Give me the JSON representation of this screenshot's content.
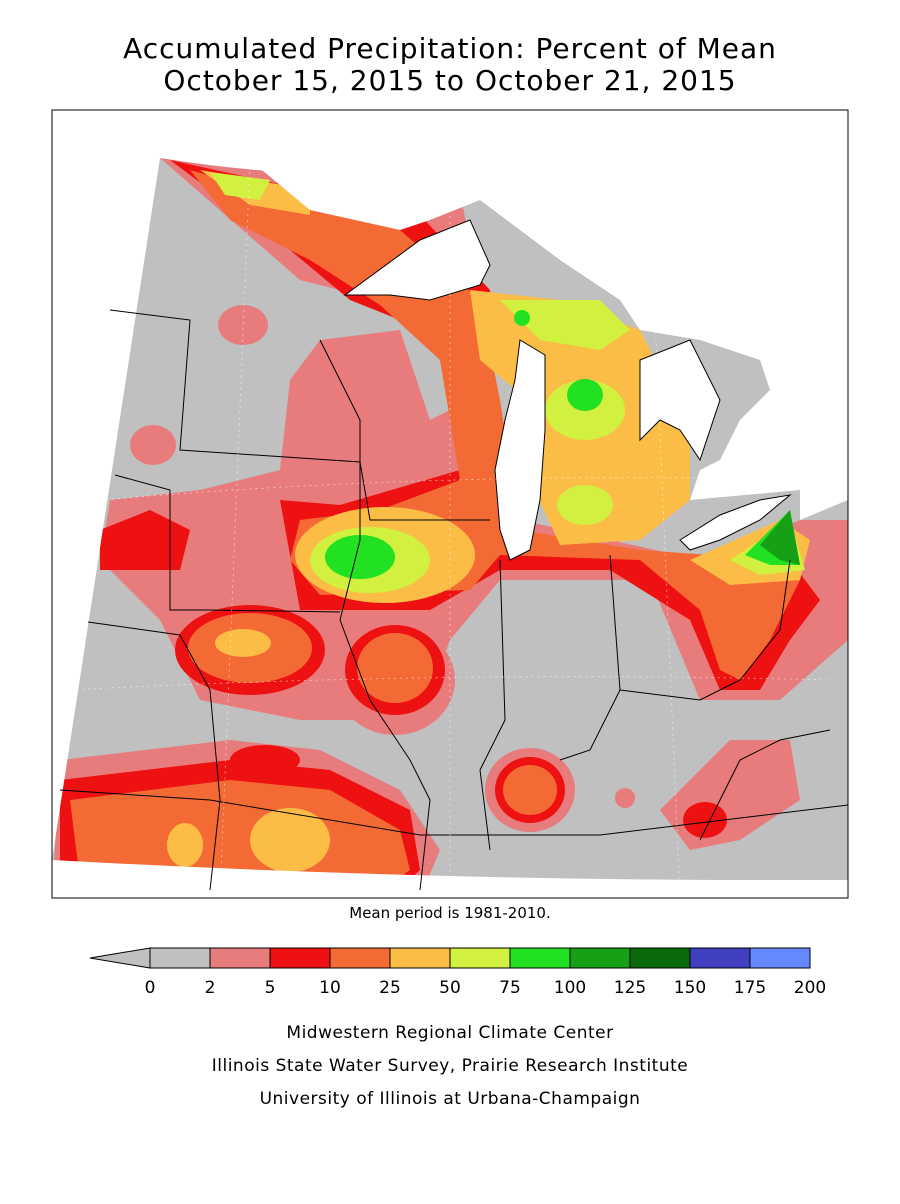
{
  "header": {
    "title_lines": [
      "Accumulated Precipitation: Percent of Mean",
      "October 15, 2015 to October 21, 2015"
    ]
  },
  "note": "Mean period is 1981-2010.",
  "legend": {
    "ticks": [
      0,
      2,
      5,
      10,
      25,
      50,
      75,
      100,
      125,
      150,
      175,
      200
    ],
    "arrow_color": "#c0c0c0",
    "colors": [
      "#c0c0c0",
      "#e87c7c",
      "#ee1111",
      "#f46a35",
      "#fbbd45",
      "#d2f040",
      "#22e022",
      "#15a015",
      "#0a6a0a",
      "#4040c0",
      "#6688ff"
    ]
  },
  "credits": [
    "Midwestern Regional Climate Center",
    "Illinois State Water Survey, Prairie Research Institute",
    "University of Illinois at Urbana-Champaign"
  ]
}
